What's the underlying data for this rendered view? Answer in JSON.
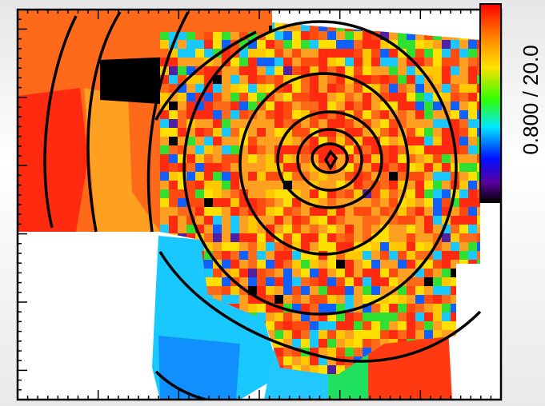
{
  "colorbar": {
    "label": "0.800 / 20.0"
  }
}
